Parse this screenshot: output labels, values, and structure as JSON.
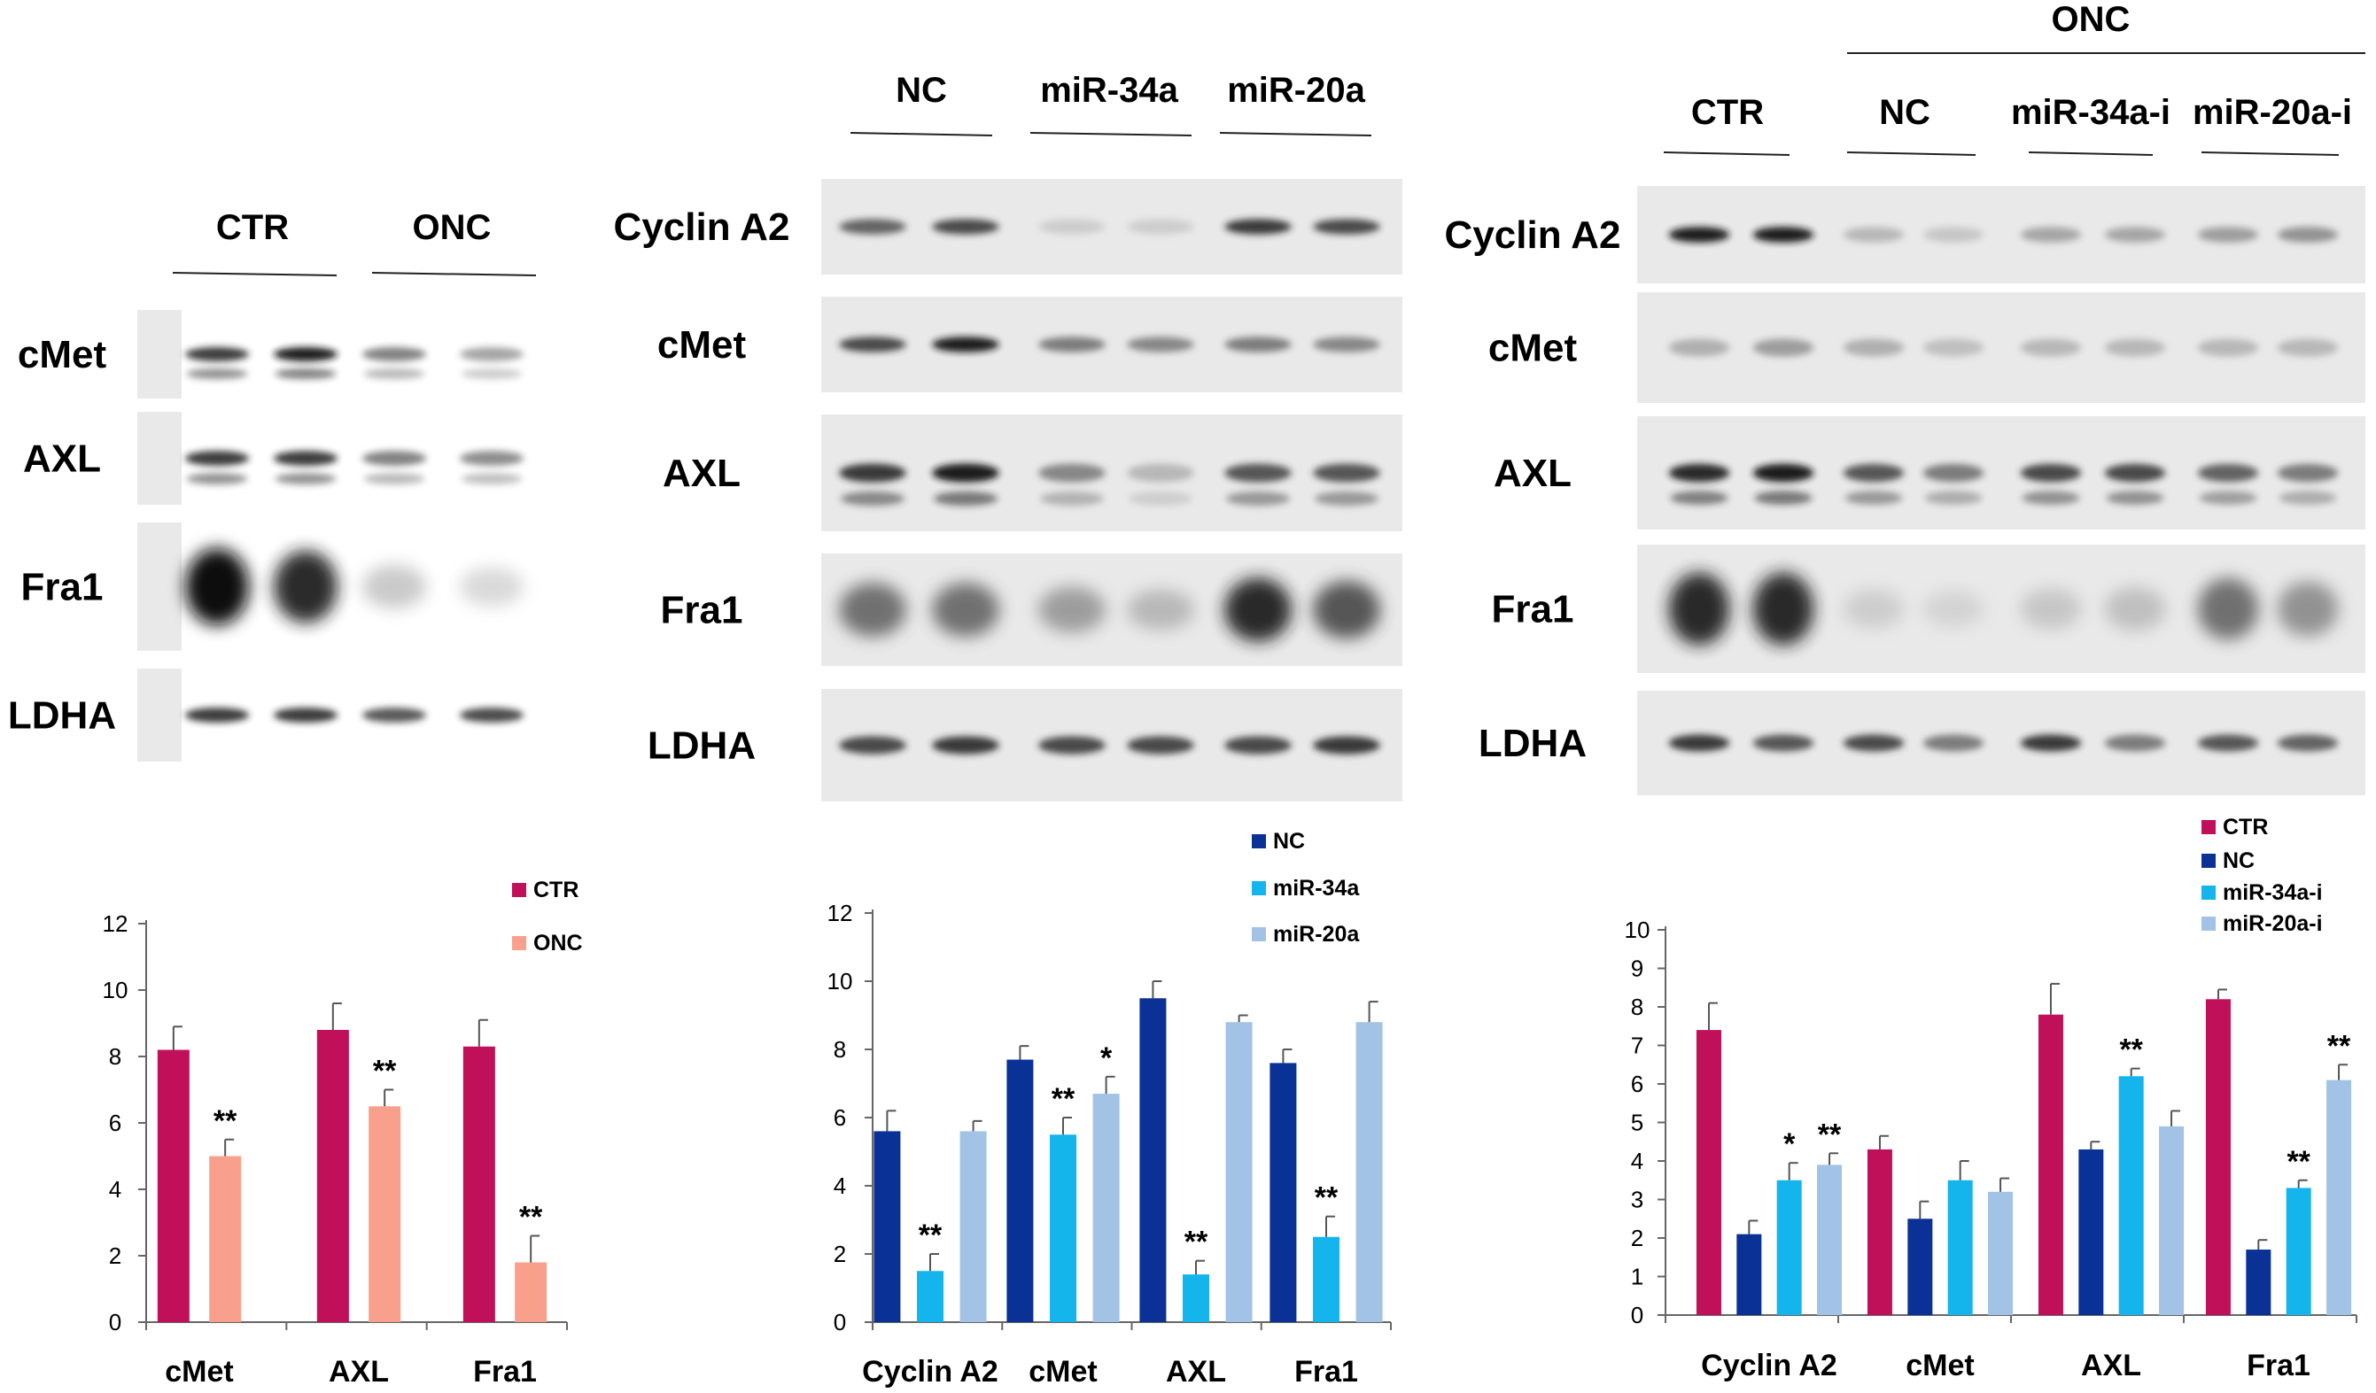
{
  "panels": [
    {
      "id": "left",
      "header_groups": [
        "CTR",
        "ONC"
      ],
      "top_label": "",
      "rows": [
        {
          "label": "cMet",
          "bands": [
            0.85,
            0.95,
            0.6,
            0.45
          ]
        },
        {
          "label": "AXL",
          "bands": [
            0.85,
            0.85,
            0.6,
            0.55
          ]
        },
        {
          "label": "Fra1",
          "bands": [
            1.0,
            0.9,
            0.25,
            0.15
          ]
        },
        {
          "label": "LDHA",
          "bands": [
            0.85,
            0.85,
            0.75,
            0.8
          ]
        }
      ]
    },
    {
      "id": "middle",
      "header_groups": [
        "NC",
        "miR-34a",
        "miR-20a"
      ],
      "top_label": "",
      "rows": [
        {
          "label": "Cyclin A2",
          "bands": [
            0.7,
            0.8,
            0.15,
            0.15,
            0.85,
            0.8
          ]
        },
        {
          "label": "cMet",
          "bands": [
            0.8,
            0.95,
            0.6,
            0.55,
            0.6,
            0.55
          ]
        },
        {
          "label": "AXL",
          "bands": [
            0.85,
            0.95,
            0.55,
            0.3,
            0.75,
            0.75
          ]
        },
        {
          "label": "Fra1",
          "bands": [
            0.65,
            0.65,
            0.45,
            0.3,
            0.9,
            0.75
          ]
        },
        {
          "label": "LDHA",
          "bands": [
            0.8,
            0.85,
            0.8,
            0.8,
            0.8,
            0.85
          ]
        }
      ]
    },
    {
      "id": "right",
      "header_groups": [
        "CTR",
        "NC",
        "miR-34a-i",
        "miR-20a-i"
      ],
      "top_label": "ONC",
      "rows": [
        {
          "label": "Cyclin A2",
          "bands": [
            0.95,
            0.95,
            0.3,
            0.2,
            0.4,
            0.4,
            0.45,
            0.5
          ]
        },
        {
          "label": "cMet",
          "bands": [
            0.35,
            0.45,
            0.35,
            0.25,
            0.3,
            0.3,
            0.3,
            0.3
          ]
        },
        {
          "label": "AXL",
          "bands": [
            0.9,
            0.95,
            0.75,
            0.6,
            0.8,
            0.8,
            0.7,
            0.6
          ]
        },
        {
          "label": "Fra1",
          "bands": [
            0.9,
            0.9,
            0.15,
            0.1,
            0.2,
            0.25,
            0.65,
            0.5
          ]
        },
        {
          "label": "LDHA",
          "bands": [
            0.85,
            0.75,
            0.8,
            0.6,
            0.85,
            0.6,
            0.75,
            0.7
          ]
        }
      ]
    }
  ],
  "chart_data": [
    {
      "type": "bar",
      "categories": [
        "cMet",
        "AXL",
        "Fra1"
      ],
      "ylim": [
        0,
        12
      ],
      "yticks": [
        0,
        2,
        4,
        6,
        8,
        10,
        12
      ],
      "legend_position": "top-right",
      "series": [
        {
          "name": "CTR",
          "color": "#c0105a",
          "values": [
            8.2,
            8.8,
            8.3
          ],
          "errors": [
            0.7,
            0.8,
            0.8
          ]
        },
        {
          "name": "ONC",
          "color": "#f9a08c",
          "values": [
            5.0,
            6.5,
            1.8
          ],
          "errors": [
            0.5,
            0.5,
            0.8
          ]
        }
      ],
      "annotations": [
        {
          "series": 1,
          "category": 0,
          "text": "**"
        },
        {
          "series": 1,
          "category": 1,
          "text": "**"
        },
        {
          "series": 1,
          "category": 2,
          "text": "**"
        }
      ]
    },
    {
      "type": "bar",
      "categories": [
        "Cyclin A2",
        "cMet",
        "AXL",
        "Fra1"
      ],
      "ylim": [
        0,
        12
      ],
      "yticks": [
        0,
        2,
        4,
        6,
        8,
        10,
        12
      ],
      "legend_position": "top-right",
      "series": [
        {
          "name": "NC",
          "color": "#0a3196",
          "values": [
            5.6,
            7.7,
            9.5,
            7.6
          ],
          "errors": [
            0.6,
            0.4,
            0.5,
            0.4
          ]
        },
        {
          "name": "miR-34a",
          "color": "#14b4ec",
          "values": [
            1.5,
            5.5,
            1.4,
            2.5
          ],
          "errors": [
            0.5,
            0.5,
            0.4,
            0.6
          ]
        },
        {
          "name": "miR-20a",
          "color": "#a2c3e6",
          "values": [
            5.6,
            6.7,
            8.8,
            8.8
          ],
          "errors": [
            0.3,
            0.5,
            0.2,
            0.6
          ]
        }
      ],
      "annotations": [
        {
          "series": 1,
          "category": 0,
          "text": "**"
        },
        {
          "series": 1,
          "category": 1,
          "text": "**"
        },
        {
          "series": 2,
          "category": 1,
          "text": "*"
        },
        {
          "series": 1,
          "category": 2,
          "text": "**"
        },
        {
          "series": 1,
          "category": 3,
          "text": "**"
        }
      ]
    },
    {
      "type": "bar",
      "categories": [
        "Cyclin A2",
        "cMet",
        "AXL",
        "Fra1"
      ],
      "ylim": [
        0,
        10
      ],
      "yticks": [
        0,
        1,
        2,
        3,
        4,
        5,
        6,
        7,
        8,
        9,
        10
      ],
      "legend_position": "top-right",
      "series": [
        {
          "name": "CTR",
          "color": "#c0105a",
          "values": [
            7.4,
            4.3,
            7.8,
            8.2
          ],
          "errors": [
            0.7,
            0.35,
            0.8,
            0.25
          ]
        },
        {
          "name": "NC",
          "color": "#0a3196",
          "values": [
            2.1,
            2.5,
            4.3,
            1.7
          ],
          "errors": [
            0.35,
            0.45,
            0.2,
            0.25
          ]
        },
        {
          "name": "miR-34a-i",
          "color": "#14b4ec",
          "values": [
            3.5,
            3.5,
            6.2,
            3.3
          ],
          "errors": [
            0.45,
            0.5,
            0.2,
            0.2
          ]
        },
        {
          "name": "miR-20a-i",
          "color": "#a2c3e6",
          "values": [
            3.9,
            3.2,
            4.9,
            6.1
          ],
          "errors": [
            0.3,
            0.35,
            0.4,
            0.4
          ]
        }
      ],
      "annotations": [
        {
          "series": 2,
          "category": 0,
          "text": "*"
        },
        {
          "series": 3,
          "category": 0,
          "text": "**"
        },
        {
          "series": 2,
          "category": 2,
          "text": "**"
        },
        {
          "series": 2,
          "category": 3,
          "text": "**"
        },
        {
          "series": 3,
          "category": 3,
          "text": "**"
        }
      ]
    }
  ]
}
